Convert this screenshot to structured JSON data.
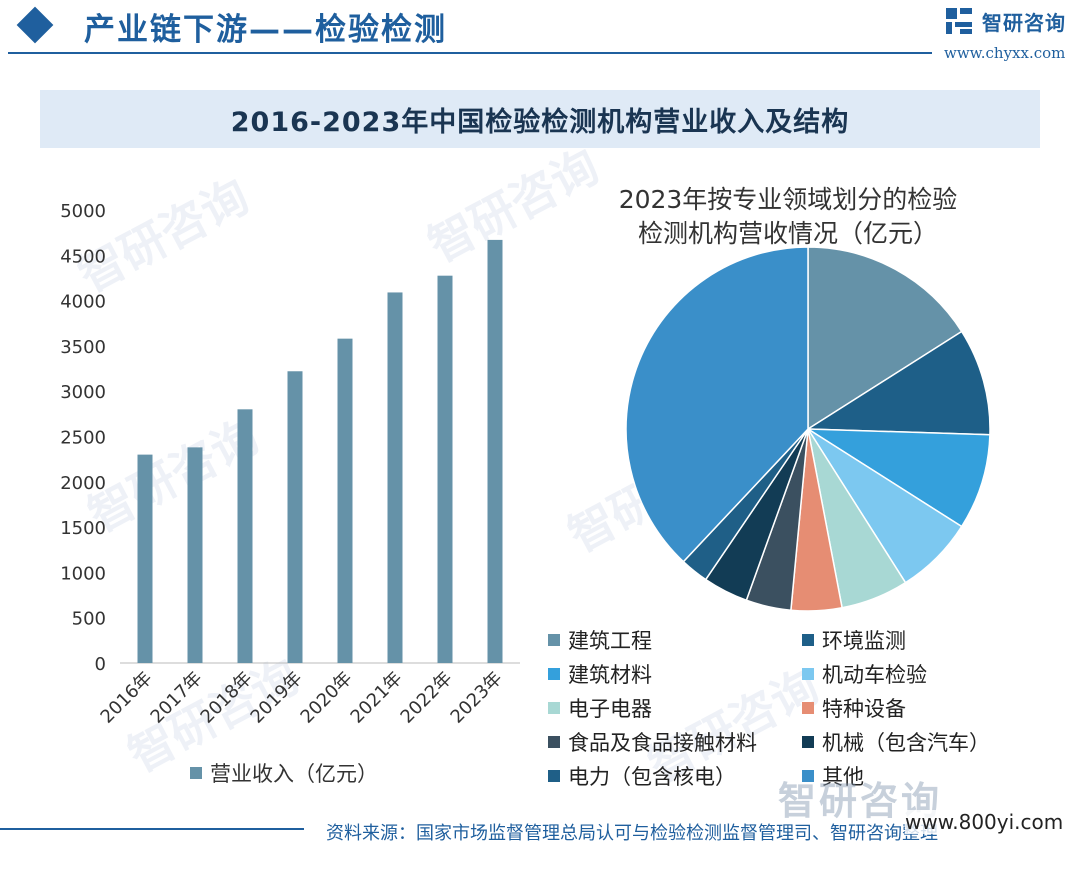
{
  "header": {
    "title": "产业链下游——检验检测",
    "logo_text": "智研咨询",
    "logo_url": "www.chyxx.com"
  },
  "main_title": "2016-2023年中国检验检测机构营业收入及结构",
  "watermark_text": "智研咨询",
  "chart_data": [
    {
      "type": "bar",
      "categories": [
        "2016年",
        "2017年",
        "2018年",
        "2019年",
        "2020年",
        "2021年",
        "2022年",
        "2023年"
      ],
      "series": [
        {
          "name": "营业收入（亿元）",
          "values": [
            2300,
            2380,
            2800,
            3220,
            3580,
            4090,
            4275,
            4670
          ]
        }
      ],
      "yticks": [
        "0",
        "500",
        "1000",
        "1500",
        "2000",
        "2500",
        "3000",
        "3500",
        "4000",
        "4500",
        "5000"
      ],
      "ylim": [
        0,
        5000
      ],
      "grid": false,
      "legend_position": "bottom",
      "color": "#6592a8"
    },
    {
      "type": "pie",
      "title_lines": [
        "2023年按专业领域划分的检验",
        "检测机构营收情况（亿元）"
      ],
      "slices": [
        {
          "name": "建筑工程",
          "value": 16,
          "color": "#6592a8"
        },
        {
          "name": "环境监测",
          "value": 9.5,
          "color": "#1e5f88"
        },
        {
          "name": "建筑材料",
          "value": 8.5,
          "color": "#34a0dc"
        },
        {
          "name": "机动车检验",
          "value": 7,
          "color": "#7cc8f0"
        },
        {
          "name": "电子电器",
          "value": 6,
          "color": "#a8d8d4"
        },
        {
          "name": "特种设备",
          "value": 4.5,
          "color": "#e68d73"
        },
        {
          "name": "食品及食品接触材料",
          "value": 4,
          "color": "#3b5060"
        },
        {
          "name": "机械（包含汽车）",
          "value": 4,
          "color": "#123c55"
        },
        {
          "name": "电力（包含核电）",
          "value": 2.5,
          "color": "#1f5f87"
        },
        {
          "name": "其他",
          "value": 38,
          "color": "#3a8fc9"
        }
      ],
      "legend_position": "bottom"
    }
  ],
  "footer": {
    "source": "资料来源：国家市场监督管理总局认可与检验检测监督管理司、智研咨询整理",
    "site_tag": "www.800yi.com"
  }
}
